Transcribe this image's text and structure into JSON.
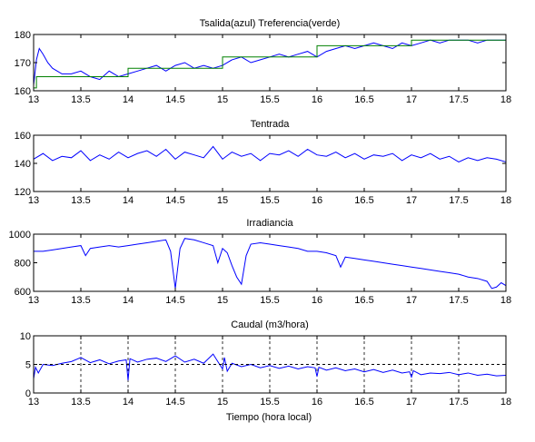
{
  "figure": {
    "xlabel": "Tiempo (hora local)"
  },
  "chart_data": [
    {
      "type": "line",
      "title": "Tsalida(azul) Treferencia(verde)",
      "xlabel": "",
      "ylabel": "",
      "xlim": [
        13,
        18
      ],
      "ylim": [
        160,
        180
      ],
      "xticks": [
        13,
        13.5,
        14,
        14.5,
        15,
        15.5,
        16,
        16.5,
        17,
        17.5,
        18
      ],
      "yticks": [
        160,
        170,
        180
      ],
      "grid": false,
      "series": [
        {
          "color": "#0000ff",
          "x": [
            13.0,
            13.03,
            13.06,
            13.1,
            13.15,
            13.2,
            13.25,
            13.3,
            13.4,
            13.5,
            13.6,
            13.7,
            13.8,
            13.9,
            14.0,
            14.1,
            14.2,
            14.3,
            14.4,
            14.5,
            14.6,
            14.7,
            14.8,
            14.9,
            15.0,
            15.1,
            15.2,
            15.3,
            15.4,
            15.5,
            15.6,
            15.7,
            15.8,
            15.9,
            16.0,
            16.1,
            16.2,
            16.3,
            16.4,
            16.5,
            16.6,
            16.7,
            16.8,
            16.9,
            17.0,
            17.1,
            17.2,
            17.3,
            17.4,
            17.5,
            17.6,
            17.7,
            17.8,
            17.9,
            18.0
          ],
          "y": [
            162,
            171,
            175,
            173,
            170,
            168,
            167,
            166,
            166,
            167,
            165,
            164,
            167,
            165,
            166,
            167,
            168,
            169,
            167,
            169,
            170,
            168,
            169,
            168,
            169,
            171,
            172,
            170,
            171,
            172,
            173,
            172,
            173,
            174,
            172,
            174,
            175,
            176,
            175,
            176,
            177,
            176,
            175,
            177,
            176,
            177,
            178,
            177,
            178,
            178,
            178,
            177,
            178,
            178,
            178
          ]
        },
        {
          "color": "#008000",
          "x": [
            13.0,
            13.03,
            13.03,
            13.4,
            13.4,
            14.0,
            14.0,
            15.0,
            15.0,
            16.0,
            16.0,
            17.0,
            17.0,
            18.0
          ],
          "y": [
            161,
            161,
            165,
            165,
            165,
            165,
            168,
            168,
            172,
            172,
            176,
            176,
            178,
            178
          ]
        }
      ]
    },
    {
      "type": "line",
      "title": "Tentrada",
      "xlabel": "",
      "ylabel": "",
      "xlim": [
        13,
        18
      ],
      "ylim": [
        120,
        160
      ],
      "xticks": [
        13,
        13.5,
        14,
        14.5,
        15,
        15.5,
        16,
        16.5,
        17,
        17.5,
        18
      ],
      "yticks": [
        120,
        140,
        160
      ],
      "grid": false,
      "series": [
        {
          "color": "#0000ff",
          "x": [
            13.0,
            13.1,
            13.2,
            13.3,
            13.4,
            13.5,
            13.6,
            13.7,
            13.8,
            13.9,
            14.0,
            14.1,
            14.2,
            14.3,
            14.4,
            14.5,
            14.6,
            14.7,
            14.8,
            14.9,
            15.0,
            15.1,
            15.2,
            15.3,
            15.4,
            15.5,
            15.6,
            15.7,
            15.8,
            15.9,
            16.0,
            16.1,
            16.2,
            16.3,
            16.4,
            16.5,
            16.6,
            16.7,
            16.8,
            16.9,
            17.0,
            17.1,
            17.2,
            17.3,
            17.4,
            17.5,
            17.6,
            17.7,
            17.8,
            17.9,
            18.0
          ],
          "y": [
            143,
            147,
            142,
            145,
            144,
            149,
            142,
            146,
            143,
            148,
            144,
            147,
            149,
            145,
            150,
            143,
            148,
            146,
            144,
            152,
            143,
            148,
            145,
            147,
            142,
            147,
            146,
            149,
            145,
            150,
            146,
            145,
            148,
            144,
            147,
            143,
            146,
            145,
            147,
            142,
            146,
            144,
            147,
            143,
            145,
            141,
            144,
            142,
            144,
            143,
            141
          ]
        }
      ]
    },
    {
      "type": "line",
      "title": "Irradiancia",
      "xlabel": "",
      "ylabel": "",
      "xlim": [
        13,
        18
      ],
      "ylim": [
        600,
        1000
      ],
      "xticks": [
        13,
        13.5,
        14,
        14.5,
        15,
        15.5,
        16,
        16.5,
        17,
        17.5,
        18
      ],
      "yticks": [
        600,
        800,
        1000
      ],
      "grid": false,
      "series": [
        {
          "color": "#0000ff",
          "x": [
            13.0,
            13.1,
            13.2,
            13.3,
            13.4,
            13.5,
            13.55,
            13.6,
            13.7,
            13.8,
            13.9,
            14.0,
            14.1,
            14.2,
            14.3,
            14.4,
            14.45,
            14.5,
            14.55,
            14.6,
            14.7,
            14.8,
            14.9,
            14.95,
            15.0,
            15.05,
            15.1,
            15.15,
            15.2,
            15.25,
            15.3,
            15.4,
            15.5,
            15.6,
            15.7,
            15.8,
            15.9,
            16.0,
            16.1,
            16.2,
            16.25,
            16.3,
            16.4,
            16.5,
            16.6,
            16.7,
            16.8,
            16.9,
            17.0,
            17.1,
            17.2,
            17.3,
            17.4,
            17.5,
            17.6,
            17.7,
            17.8,
            17.85,
            17.9,
            17.95,
            18.0
          ],
          "y": [
            880,
            880,
            890,
            900,
            910,
            920,
            850,
            900,
            910,
            920,
            910,
            920,
            930,
            940,
            950,
            960,
            880,
            620,
            900,
            970,
            960,
            940,
            920,
            800,
            900,
            870,
            780,
            700,
            650,
            850,
            930,
            940,
            930,
            920,
            910,
            900,
            880,
            880,
            870,
            850,
            770,
            840,
            830,
            820,
            810,
            800,
            790,
            780,
            770,
            760,
            750,
            740,
            730,
            720,
            700,
            690,
            670,
            620,
            630,
            660,
            640
          ]
        }
      ]
    },
    {
      "type": "line",
      "title": "Caudal (m3/hora)",
      "xlabel": "Tiempo (hora local)",
      "ylabel": "",
      "xlim": [
        13,
        18
      ],
      "ylim": [
        0,
        10
      ],
      "xticks": [
        13,
        13.5,
        14,
        14.5,
        15,
        15.5,
        16,
        16.5,
        17,
        17.5,
        18
      ],
      "yticks": [
        0,
        5,
        10
      ],
      "grid": true,
      "series": [
        {
          "color": "#0000ff",
          "x": [
            13.0,
            13.02,
            13.05,
            13.1,
            13.2,
            13.3,
            13.4,
            13.5,
            13.6,
            13.7,
            13.8,
            13.9,
            13.98,
            14.0,
            14.02,
            14.1,
            14.2,
            14.3,
            14.4,
            14.5,
            14.6,
            14.7,
            14.8,
            14.9,
            14.95,
            15.0,
            15.02,
            15.05,
            15.1,
            15.2,
            15.3,
            15.4,
            15.5,
            15.6,
            15.7,
            15.8,
            15.9,
            15.98,
            16.0,
            16.02,
            16.1,
            16.2,
            16.3,
            16.4,
            16.5,
            16.6,
            16.7,
            16.8,
            16.9,
            16.98,
            17.0,
            17.02,
            17.1,
            17.2,
            17.3,
            17.4,
            17.5,
            17.6,
            17.7,
            17.8,
            17.9,
            18.0
          ],
          "y": [
            2.5,
            4.5,
            3.5,
            5.0,
            4.8,
            5.2,
            5.5,
            6.2,
            5.3,
            5.8,
            5.1,
            5.6,
            5.8,
            2.2,
            6.0,
            5.4,
            5.9,
            6.1,
            5.5,
            6.5,
            5.4,
            5.9,
            5.2,
            6.8,
            5.5,
            4.2,
            6.2,
            3.8,
            5.2,
            4.6,
            5.0,
            4.4,
            4.8,
            4.3,
            4.7,
            4.2,
            4.6,
            4.4,
            2.9,
            4.5,
            4.0,
            4.4,
            3.9,
            4.2,
            3.7,
            4.1,
            3.6,
            4.0,
            3.5,
            3.7,
            2.8,
            3.9,
            3.2,
            3.5,
            3.4,
            3.6,
            3.2,
            3.5,
            3.1,
            3.3,
            3.0,
            3.1
          ]
        },
        {
          "color": "#000000",
          "x": [
            13.0,
            18.0
          ],
          "y": [
            5,
            5
          ]
        }
      ]
    }
  ]
}
